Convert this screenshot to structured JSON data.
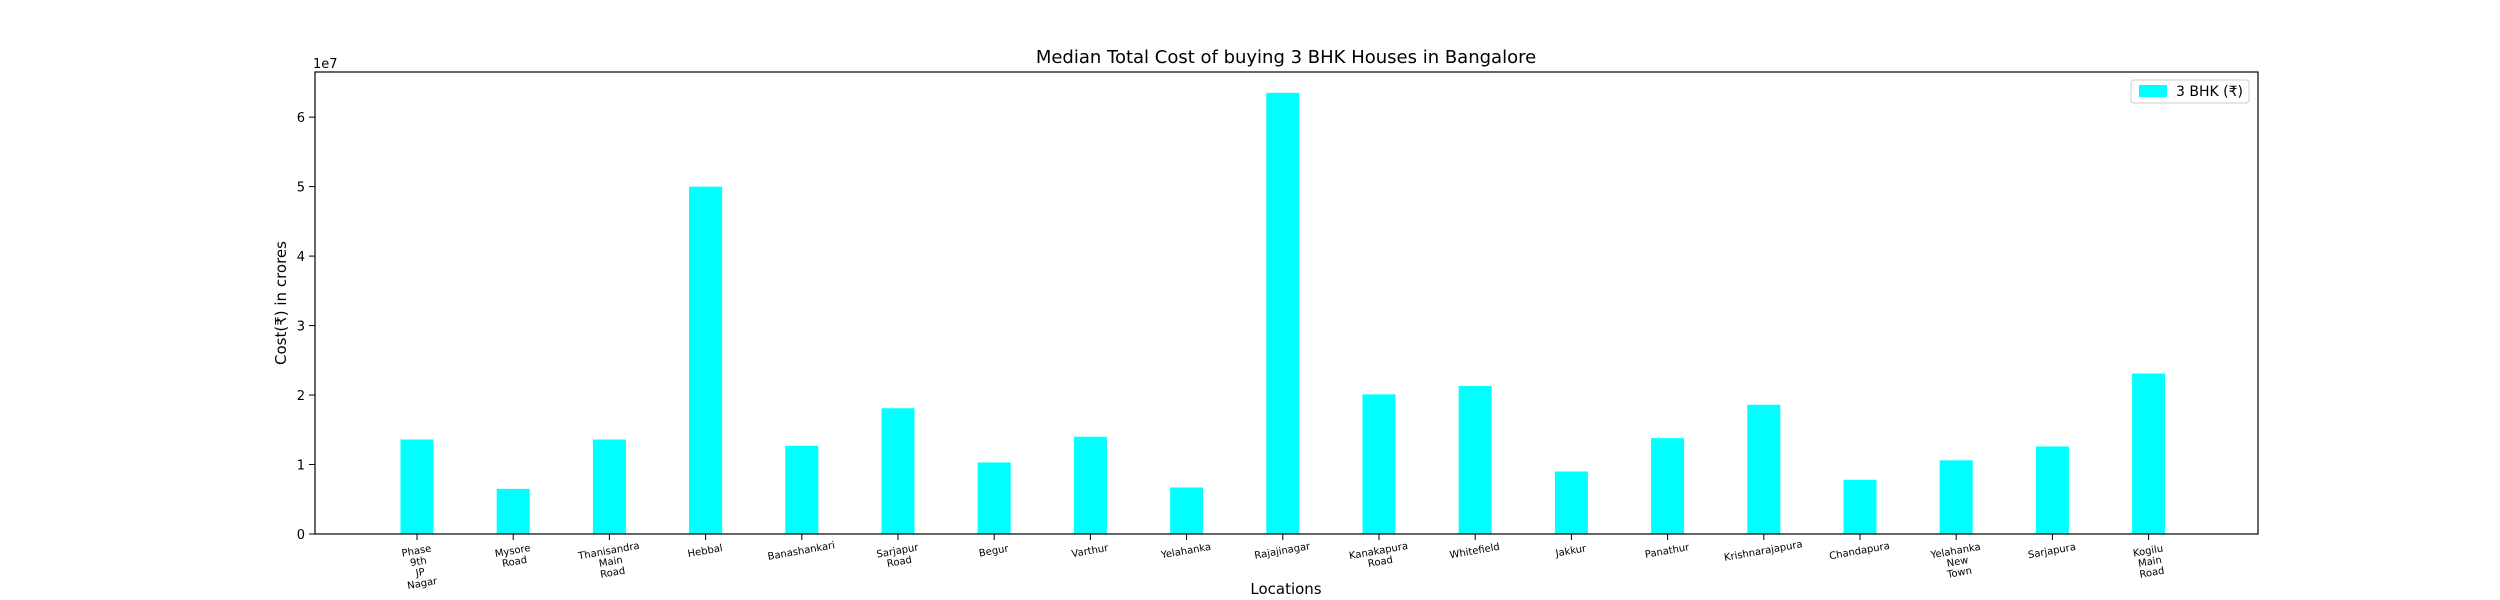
{
  "chart_data": {
    "type": "bar",
    "title": "Median Total Cost of buying 3 BHK Houses in Bangalore",
    "xlabel": "Locations",
    "ylabel": "Cost(₹) in crores",
    "y_offset_label": "1e7",
    "y_scale": 10000000,
    "ylim": [
      0,
      66500000
    ],
    "yticks": [
      0,
      1,
      2,
      3,
      4,
      5,
      6
    ],
    "grid": false,
    "legend": "top-right",
    "bar_color": "#00ffff",
    "categories": [
      "Phase\n9th\nJP\nNagar",
      "Mysore\nRoad",
      "Thanisandra\nMain\nRoad",
      "Hebbal",
      "Banashankari",
      "Sarjapur\nRoad",
      "Begur",
      "Varthur",
      "Yelahanka",
      "Rajajinagar",
      "Kanakapura\nRoad",
      "Whitefield",
      "Jakkur",
      "Panathur",
      "Krishnarajapura",
      "Chandapura",
      "Yelahanka\nNew\nTown",
      "Sarjapura",
      "Kogilu\nMain\nRoad"
    ],
    "series": [
      {
        "name": "3 BHK (₹)",
        "values": [
          13600000,
          6500000,
          13600000,
          50000000,
          12700000,
          18100000,
          10300000,
          14000000,
          6700000,
          63500000,
          20100000,
          21300000,
          9000000,
          13800000,
          18600000,
          7800000,
          10600000,
          12600000,
          23100000
        ]
      }
    ]
  }
}
